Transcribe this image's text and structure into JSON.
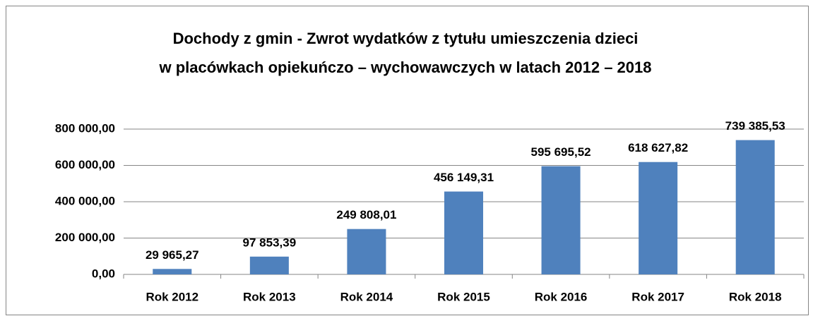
{
  "chart_data": {
    "type": "bar",
    "title": [
      "Dochody z gmin - Zwrot wydatków z tytułu umieszczenia dzieci",
      "w placówkach opiekuńczo – wychowawczych w latach 2012 – 2018"
    ],
    "categories": [
      "Rok 2012",
      "Rok 2013",
      "Rok 2014",
      "Rok 2015",
      "Rok 2016",
      "Rok 2017",
      "Rok 2018"
    ],
    "values": [
      29965.27,
      97853.39,
      249808.01,
      456149.31,
      595695.52,
      618627.82,
      739385.53
    ],
    "value_labels": [
      "29 965,27",
      "97 853,39",
      "249 808,01",
      "456 149,31",
      "595 695,52",
      "618 627,82",
      "739 385,53"
    ],
    "color": "#4f81bd",
    "ylim": [
      0,
      800000
    ],
    "yticks": [
      {
        "value": 0,
        "label": "0,00"
      },
      {
        "value": 200000,
        "label": "200 000,00"
      },
      {
        "value": 400000,
        "label": "400 000,00"
      },
      {
        "value": 600000,
        "label": "600 000,00"
      },
      {
        "value": 800000,
        "label": "800 000,00"
      }
    ],
    "grid": true
  }
}
